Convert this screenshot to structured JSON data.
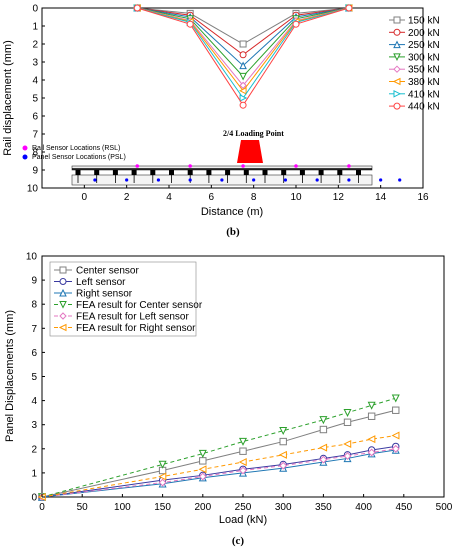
{
  "chart_data": [
    {
      "type": "line",
      "caption": "(b)",
      "xlabel": "Distance (m)",
      "ylabel": "Rail displacement (mm)",
      "xlim": [
        -2,
        16
      ],
      "ylim": [
        10,
        0
      ],
      "y_inverted": true,
      "xticks": [
        "0",
        "2",
        "4",
        "6",
        "8",
        "10",
        "12",
        "14",
        "16"
      ],
      "yticks": [
        "0",
        "1",
        "2",
        "3",
        "4",
        "5",
        "6",
        "7",
        "8",
        "9",
        "10"
      ],
      "x": [
        2.5,
        5,
        7.5,
        10,
        12.5
      ],
      "legend_position": "top-right",
      "series": [
        {
          "name": "150 kN",
          "color": "#808080",
          "marker": "square",
          "values": [
            0,
            0.3,
            2.0,
            0.3,
            0
          ]
        },
        {
          "name": "200 kN",
          "color": "#d62728",
          "marker": "circle",
          "values": [
            0,
            0.4,
            2.6,
            0.4,
            0
          ]
        },
        {
          "name": "250 kN",
          "color": "#1f77b4",
          "marker": "triangle-up",
          "values": [
            0,
            0.5,
            3.2,
            0.5,
            0
          ]
        },
        {
          "name": "300 kN",
          "color": "#2ca02c",
          "marker": "triangle-down",
          "values": [
            0,
            0.6,
            3.8,
            0.6,
            0
          ]
        },
        {
          "name": "350 kN",
          "color": "#e377c2",
          "marker": "diamond",
          "values": [
            0,
            0.7,
            4.3,
            0.7,
            0
          ]
        },
        {
          "name": "380 kN",
          "color": "#ff9900",
          "marker": "triangle-left",
          "values": [
            0,
            0.75,
            4.6,
            0.75,
            0
          ]
        },
        {
          "name": "410 kN",
          "color": "#17becf",
          "marker": "triangle-right",
          "values": [
            0,
            0.8,
            5.0,
            0.8,
            0
          ]
        },
        {
          "name": "440 kN",
          "color": "#ff4444",
          "marker": "circle",
          "values": [
            0,
            0.9,
            5.4,
            0.9,
            0
          ]
        }
      ],
      "annotations": {
        "rail_sensor": "Rail Sensor Locations (RSL)",
        "panel_sensor": "Panel Sensor Locations (PSL)",
        "loading_point": "2/4 Loading Point"
      }
    },
    {
      "type": "line",
      "caption": "(c)",
      "xlabel": "Load (kN)",
      "ylabel": "Panel Displacements (mm)",
      "xlim": [
        0,
        500
      ],
      "ylim": [
        0,
        10
      ],
      "xticks": [
        "0",
        "50",
        "100",
        "150",
        "200",
        "250",
        "300",
        "350",
        "400",
        "450",
        "500"
      ],
      "yticks": [
        "0",
        "1",
        "2",
        "3",
        "4",
        "5",
        "6",
        "7",
        "8",
        "9",
        "10"
      ],
      "x": [
        0,
        150,
        200,
        250,
        300,
        350,
        380,
        410,
        440
      ],
      "legend_position": "top-left",
      "series": [
        {
          "name": "Center sensor",
          "color": "#808080",
          "marker": "square",
          "dashed": false,
          "values": [
            0,
            1.1,
            1.5,
            1.9,
            2.3,
            2.8,
            3.1,
            3.35,
            3.6
          ]
        },
        {
          "name": "Left sensor",
          "color": "#3a3aa0",
          "marker": "circle",
          "dashed": false,
          "values": [
            0,
            0.7,
            0.9,
            1.15,
            1.35,
            1.6,
            1.75,
            1.95,
            2.1
          ]
        },
        {
          "name": "Right sensor",
          "color": "#1f77b4",
          "marker": "triangle-up",
          "dashed": false,
          "values": [
            0,
            0.55,
            0.8,
            1.0,
            1.2,
            1.45,
            1.6,
            1.8,
            1.95
          ]
        },
        {
          "name": "FEA result for Center sensor",
          "color": "#2ca02c",
          "marker": "triangle-down",
          "dashed": true,
          "values": [
            0,
            1.35,
            1.8,
            2.3,
            2.75,
            3.2,
            3.5,
            3.8,
            4.1
          ]
        },
        {
          "name": "FEA result for Left sensor",
          "color": "#e377c2",
          "marker": "diamond",
          "dashed": true,
          "values": [
            0,
            0.6,
            0.85,
            1.1,
            1.3,
            1.55,
            1.7,
            1.85,
            2.0
          ]
        },
        {
          "name": "FEA result for Right sensor",
          "color": "#ff9900",
          "marker": "triangle-left",
          "dashed": true,
          "values": [
            0,
            0.85,
            1.15,
            1.45,
            1.75,
            2.05,
            2.2,
            2.4,
            2.55
          ]
        }
      ]
    }
  ]
}
